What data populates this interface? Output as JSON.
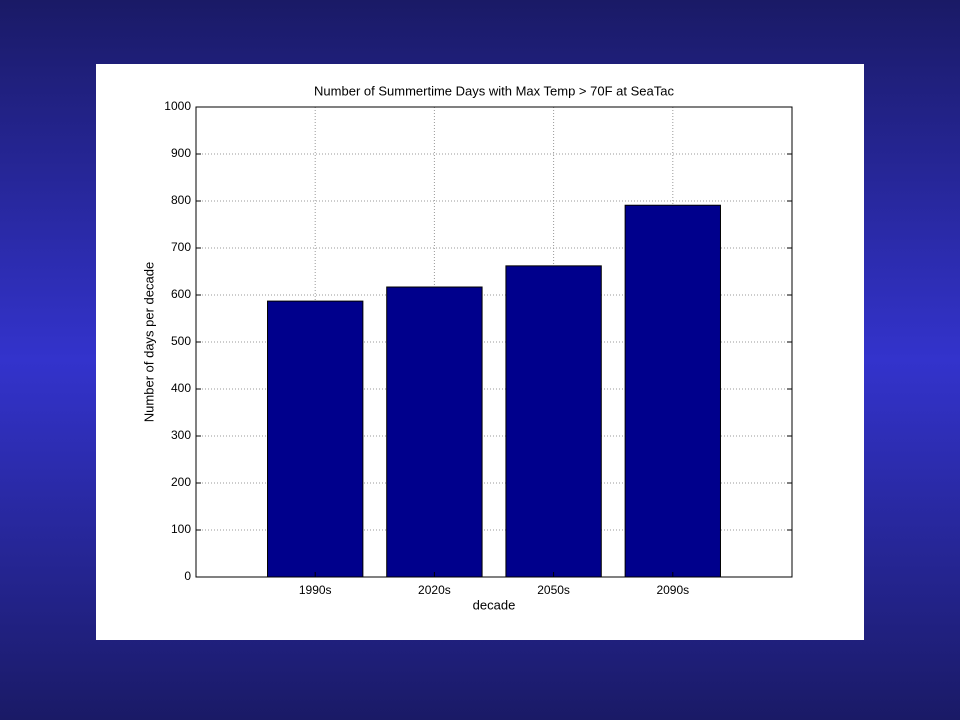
{
  "chart_data": {
    "type": "bar",
    "title": "Number of Summertime Days with Max Temp > 70F at SeaTac",
    "x_label": "decade",
    "y_label": "Number of days per decade",
    "categories": [
      "1990s",
      "2020s",
      "2050s",
      "2090s"
    ],
    "values": [
      587,
      617,
      662,
      791
    ],
    "color": "#00008c",
    "ylim": [
      0,
      1000
    ],
    "yticks": [
      0,
      100,
      200,
      300,
      400,
      500,
      600,
      700,
      800,
      900,
      1000
    ],
    "grid": true
  }
}
